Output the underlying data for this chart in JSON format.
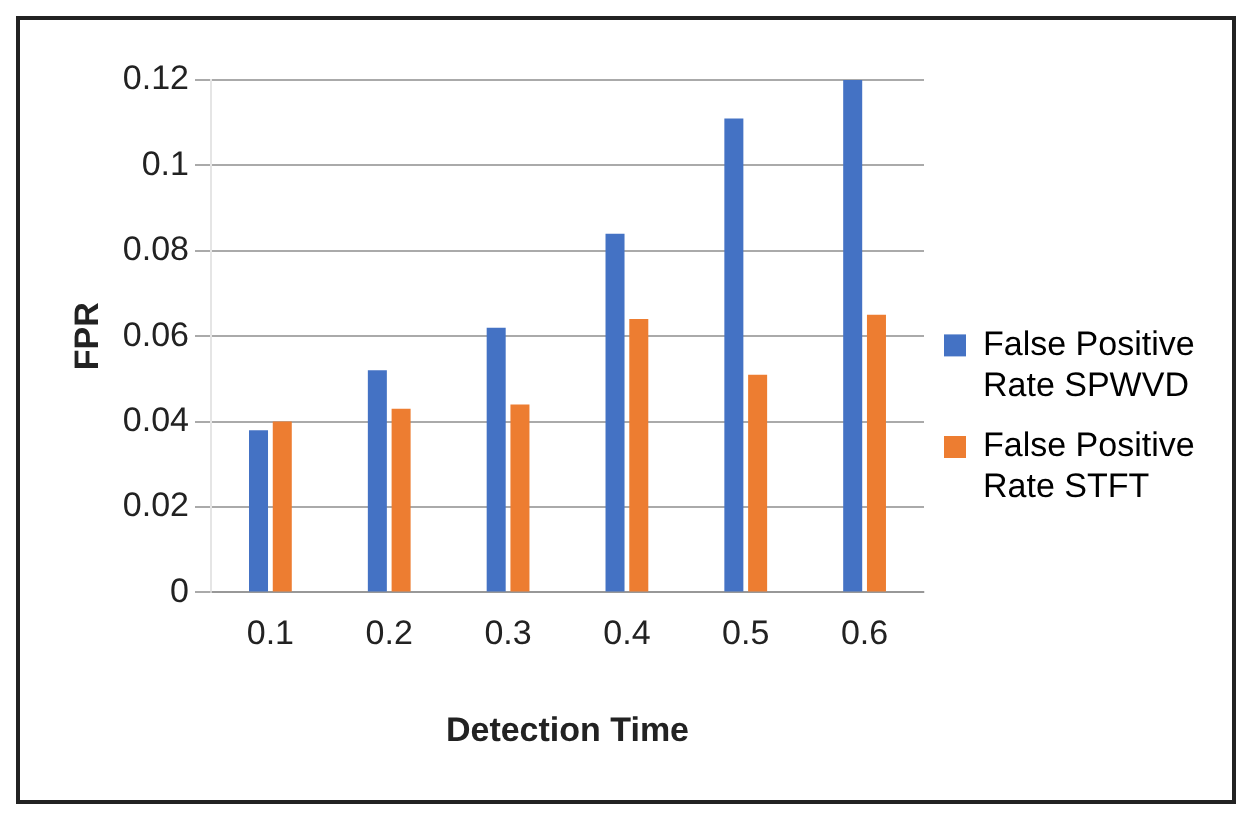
{
  "chart_data": {
    "type": "bar",
    "xlabel": "Detection Time",
    "ylabel": "FPR",
    "categories": [
      "0.1",
      "0.2",
      "0.3",
      "0.4",
      "0.5",
      "0.6"
    ],
    "series": [
      {
        "name": "False Positive Rate SPWVD",
        "color": "#4472c4",
        "values": [
          0.038,
          0.052,
          0.062,
          0.084,
          0.111,
          0.12
        ]
      },
      {
        "name": "False Positive Rate STFT",
        "color": "#ed7d31",
        "values": [
          0.04,
          0.043,
          0.044,
          0.064,
          0.051,
          0.065
        ]
      }
    ],
    "ylim": [
      0,
      0.12
    ],
    "yticks": [
      0,
      0.02,
      0.04,
      0.06,
      0.08,
      0.1,
      0.12
    ],
    "grid": "y",
    "legend": "right"
  }
}
